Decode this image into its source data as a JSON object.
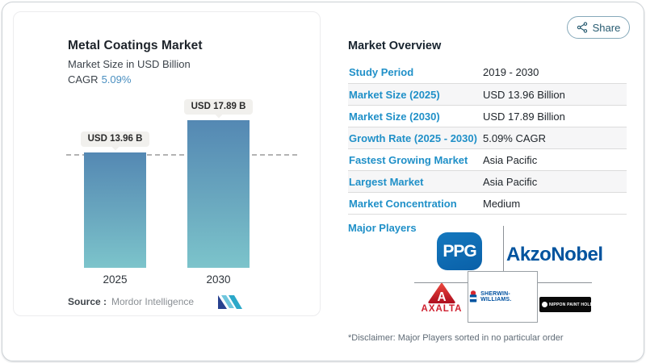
{
  "chart": {
    "title": "Metal Coatings Market",
    "subtitle": "Market Size in USD Billion",
    "cagr_label": "CAGR",
    "cagr_value": "5.09%",
    "source_label": "Source :",
    "source_value": "Mordor Intelligence"
  },
  "chart_data": {
    "type": "bar",
    "categories": [
      "2025",
      "2030"
    ],
    "values": [
      13.96,
      17.89
    ],
    "bar_labels": [
      "USD 13.96 B",
      "USD 17.89 B"
    ],
    "title": "Metal Coatings Market",
    "ylabel": "Market Size in USD Billion",
    "ylim": [
      0,
      20
    ],
    "grid": false,
    "reference_line": {
      "style": "dashed",
      "at_value": 13.96
    },
    "bar_color_top": "#5488b3",
    "bar_color_bottom": "#7cc4cb"
  },
  "share": {
    "label": "Share"
  },
  "overview": {
    "heading": "Market Overview",
    "rows": [
      {
        "label": "Study Period",
        "value": "2019 - 2030"
      },
      {
        "label": "Market Size (2025)",
        "value": "USD 13.96 Billion"
      },
      {
        "label": "Market Size (2030)",
        "value": "USD 17.89 Billion"
      },
      {
        "label": "Growth Rate (2025 - 2030)",
        "value": "5.09% CAGR"
      },
      {
        "label": "Fastest Growing Market",
        "value": "Asia Pacific"
      },
      {
        "label": "Largest Market",
        "value": "Asia Pacific"
      },
      {
        "label": "Market Concentration",
        "value": "Medium"
      }
    ],
    "major_players_label": "Major Players",
    "players": [
      "PPG",
      "AkzoNobel",
      "AXALTA",
      "SHERWIN-WILLIAMS.",
      "NIPPON PAINT HOLDINGS"
    ],
    "disclaimer": "*Disclaimer: Major Players sorted in no particular order"
  },
  "colors": {
    "accent_blue": "#2090c8",
    "cagr_blue": "#4a8fc0",
    "share_teal": "#265a70",
    "ppg_blue": "#0d6db6",
    "akzo_blue": "#00539e",
    "axalta_red": "#cf2030",
    "sherwin_blue": "#0051a0"
  }
}
